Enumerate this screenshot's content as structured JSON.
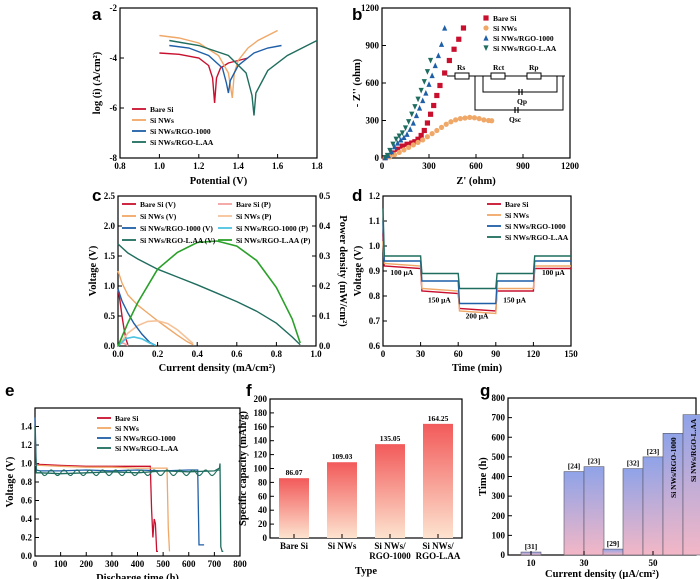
{
  "panels": {
    "a": {
      "letter": "a"
    },
    "b": {
      "letter": "b",
      "circuit": {
        "rs": "Rs",
        "rct": "Rct",
        "rp": "Rp",
        "qp": "Qp",
        "qsc": "Qsc"
      }
    },
    "c": {
      "letter": "c"
    },
    "d": {
      "letter": "d"
    },
    "e": {
      "letter": "e"
    },
    "f": {
      "letter": "f"
    },
    "g": {
      "letter": "g"
    }
  },
  "colors": {
    "bare": "#c8102e",
    "nws": "#f0a868",
    "rgo1000": "#1f5fa8",
    "laa": "#1f6d5e",
    "cap": "#4cc3e0",
    "power": "#2aa02a"
  },
  "chart_data": [
    {
      "type": "line",
      "panel": "a",
      "xlabel": "Potential (V)",
      "ylabel": "log (i) (A/cm²)",
      "xlim": [
        0.8,
        1.8
      ],
      "ylim": [
        -8,
        -2
      ],
      "xticks": [
        "0.8",
        "1.0",
        "1.2",
        "1.4",
        "1.6",
        "1.8"
      ],
      "yticks": [
        "-8",
        "-6",
        "-4",
        "-2"
      ],
      "legend_position": "bottom-left",
      "series": [
        {
          "name": "Bare Si",
          "color": "#c8102e",
          "x": [
            1.0,
            1.1,
            1.2,
            1.25,
            1.27,
            1.28,
            1.29,
            1.31,
            1.35,
            1.4,
            1.45
          ],
          "y": [
            -3.8,
            -3.85,
            -4.0,
            -4.3,
            -4.8,
            -5.8,
            -4.8,
            -4.4,
            -4.2,
            -4.1,
            -4.0
          ]
        },
        {
          "name": "Si NWs",
          "color": "#f0a868",
          "x": [
            1.0,
            1.1,
            1.2,
            1.3,
            1.35,
            1.37,
            1.38,
            1.4,
            1.45,
            1.5,
            1.6
          ],
          "y": [
            -3.1,
            -3.2,
            -3.4,
            -3.9,
            -4.6,
            -5.6,
            -4.6,
            -4.1,
            -3.6,
            -3.3,
            -2.9
          ]
        },
        {
          "name": "Si NWs/RGO-1000",
          "color": "#1f5fa8",
          "x": [
            1.05,
            1.15,
            1.25,
            1.32,
            1.34,
            1.35,
            1.36,
            1.4,
            1.48,
            1.55,
            1.62
          ],
          "y": [
            -3.5,
            -3.6,
            -3.9,
            -4.4,
            -5.0,
            -5.4,
            -4.9,
            -4.3,
            -3.8,
            -3.6,
            -3.5
          ]
        },
        {
          "name": "Si NWs/RGO-L.AA",
          "color": "#1f6d5e",
          "x": [
            1.05,
            1.2,
            1.35,
            1.44,
            1.47,
            1.48,
            1.49,
            1.55,
            1.65,
            1.75,
            1.8
          ],
          "y": [
            -3.3,
            -3.5,
            -3.9,
            -4.6,
            -5.5,
            -6.3,
            -5.4,
            -4.5,
            -3.9,
            -3.5,
            -3.3
          ]
        }
      ]
    },
    {
      "type": "scatter",
      "panel": "b",
      "xlabel": "Z' (ohm)",
      "ylabel": "- Z'' (ohm)",
      "xlim": [
        0,
        1200
      ],
      "ylim": [
        0,
        1200
      ],
      "xticks": [
        "0",
        "300",
        "600",
        "900",
        "1200"
      ],
      "yticks": [
        "0",
        "300",
        "600",
        "900",
        "1200"
      ],
      "legend_position": "top-right",
      "series": [
        {
          "name": "Bare Si",
          "marker": "square",
          "color": "#c8102e",
          "x": [
            20,
            40,
            70,
            100,
            130,
            160,
            190,
            210,
            230,
            250,
            270,
            290,
            310,
            330,
            350,
            370,
            400,
            430,
            460,
            490,
            520
          ],
          "y": [
            3,
            12,
            40,
            70,
            95,
            110,
            120,
            130,
            150,
            180,
            220,
            280,
            350,
            420,
            500,
            580,
            680,
            780,
            870,
            950,
            1040
          ]
        },
        {
          "name": "Si NWs",
          "marker": "circle",
          "color": "#f0a868",
          "x": [
            20,
            50,
            80,
            110,
            140,
            170,
            200,
            230,
            260,
            290,
            320,
            350,
            380,
            410,
            440,
            470,
            500,
            530,
            560,
            590,
            620,
            650,
            680,
            700
          ],
          "y": [
            3,
            10,
            25,
            45,
            65,
            85,
            105,
            125,
            145,
            170,
            195,
            220,
            245,
            270,
            290,
            305,
            315,
            320,
            325,
            322,
            315,
            305,
            300,
            298
          ]
        },
        {
          "name": "Si NWs/RGO-1000",
          "marker": "triangle-up",
          "color": "#1f5fa8",
          "x": [
            20,
            40,
            60,
            80,
            100,
            120,
            140,
            160,
            180,
            200,
            220,
            240,
            260,
            280,
            300,
            320,
            340,
            360,
            380,
            400
          ],
          "y": [
            3,
            20,
            50,
            90,
            120,
            145,
            165,
            190,
            230,
            280,
            340,
            400,
            460,
            520,
            590,
            660,
            740,
            820,
            910,
            1040
          ]
        },
        {
          "name": "Si NWs/RGO-L.AA",
          "marker": "triangle-down",
          "color": "#1f6d5e",
          "x": [
            20,
            35,
            50,
            70,
            90,
            110,
            130,
            150,
            170,
            190,
            210,
            230,
            250,
            270,
            290,
            310
          ],
          "y": [
            3,
            20,
            60,
            110,
            150,
            175,
            200,
            240,
            290,
            350,
            410,
            470,
            540,
            610,
            690,
            780
          ]
        }
      ]
    },
    {
      "type": "line",
      "panel": "c",
      "xlabel": "Current density (mA/cm²)",
      "ylabel": "Voltage (V)",
      "y2label": "Power density (mW/cm²)",
      "xlim": [
        0,
        1.0
      ],
      "ylim": [
        0,
        2.5
      ],
      "y2lim": [
        0,
        0.5
      ],
      "xticks": [
        "0.0",
        "0.2",
        "0.4",
        "0.6",
        "0.8",
        "1.0"
      ],
      "yticks": [
        "0.0",
        "0.5",
        "1.0",
        "1.5",
        "2.0",
        "2.5"
      ],
      "y2ticks": [
        "0.0",
        "0.1",
        "0.2",
        "0.3",
        "0.4",
        "0.5"
      ],
      "legend_position": "top",
      "series": [
        {
          "name": "Bare Si (V)",
          "axis": "left",
          "color": "#c8102e",
          "x": [
            0,
            0.01,
            0.02,
            0.03,
            0.04,
            0.05
          ],
          "y": [
            0.95,
            0.75,
            0.5,
            0.3,
            0.12,
            0.02
          ]
        },
        {
          "name": "Bare Si (P)",
          "axis": "right",
          "color": "#f4a0a0",
          "x": [
            0,
            0.01,
            0.02,
            0.03,
            0.04,
            0.05
          ],
          "y": [
            0,
            0.008,
            0.01,
            0.009,
            0.005,
            0.001
          ]
        },
        {
          "name": "Si NWs (V)",
          "axis": "left",
          "color": "#f0a868",
          "x": [
            0,
            0.02,
            0.05,
            0.1,
            0.15,
            0.2,
            0.25,
            0.3,
            0.35,
            0.38
          ],
          "y": [
            1.25,
            1.05,
            0.85,
            0.68,
            0.55,
            0.42,
            0.3,
            0.18,
            0.07,
            0.02
          ]
        },
        {
          "name": "Si NWs (P)",
          "axis": "right",
          "color": "#f5c39a",
          "x": [
            0,
            0.05,
            0.1,
            0.15,
            0.2,
            0.25,
            0.3,
            0.35,
            0.38
          ],
          "y": [
            0,
            0.043,
            0.068,
            0.082,
            0.084,
            0.075,
            0.054,
            0.025,
            0.008
          ]
        },
        {
          "name": "Si NWs/RGO-1000 (V)",
          "axis": "left",
          "color": "#1f5fa8",
          "x": [
            0,
            0.02,
            0.05,
            0.08,
            0.12,
            0.16,
            0.19
          ],
          "y": [
            0.95,
            0.75,
            0.55,
            0.38,
            0.2,
            0.06,
            0.01
          ]
        },
        {
          "name": "Si NWs/RGO-1000 (P)",
          "axis": "right",
          "color": "#4cc3e0",
          "x": [
            0,
            0.04,
            0.08,
            0.12,
            0.16,
            0.19
          ],
          "y": [
            0,
            0.025,
            0.03,
            0.024,
            0.01,
            0.002
          ]
        },
        {
          "name": "Si NWs/RGO-L.AA (V)",
          "axis": "left",
          "color": "#1f6d5e",
          "x": [
            0,
            0.05,
            0.1,
            0.2,
            0.3,
            0.4,
            0.5,
            0.6,
            0.7,
            0.8,
            0.88,
            0.92
          ],
          "y": [
            1.7,
            1.55,
            1.45,
            1.28,
            1.15,
            1.02,
            0.88,
            0.74,
            0.58,
            0.38,
            0.15,
            0.02
          ]
        },
        {
          "name": "Si NWs/RGO-L.AA (P)",
          "axis": "right",
          "color": "#2aa02a",
          "x": [
            0,
            0.05,
            0.1,
            0.2,
            0.3,
            0.4,
            0.5,
            0.6,
            0.7,
            0.8,
            0.88,
            0.92
          ],
          "y": [
            0,
            0.077,
            0.145,
            0.256,
            0.312,
            0.345,
            0.35,
            0.333,
            0.285,
            0.195,
            0.09,
            0.01
          ]
        }
      ]
    },
    {
      "type": "line",
      "panel": "d",
      "xlabel": "Time (min)",
      "ylabel": "Voltage (V)",
      "xlim": [
        0,
        150
      ],
      "ylim": [
        0.6,
        1.2
      ],
      "xticks": [
        "0",
        "30",
        "60",
        "90",
        "120",
        "150"
      ],
      "yticks": [
        "0.6",
        "0.7",
        "0.8",
        "0.9",
        "1.0",
        "1.1",
        "1.2"
      ],
      "legend_position": "top-right",
      "annotations": [
        "100 μA",
        "150 μA",
        "200 μA",
        "150 μA",
        "100 μA"
      ],
      "series": [
        {
          "name": "Bare Si",
          "color": "#c8102e",
          "x": [
            0,
            1,
            30,
            31,
            60,
            61,
            90,
            91,
            120,
            121,
            150
          ],
          "y": [
            1.05,
            0.92,
            0.91,
            0.82,
            0.81,
            0.75,
            0.74,
            0.82,
            0.82,
            0.91,
            0.91
          ]
        },
        {
          "name": "Si NWs",
          "color": "#f0a868",
          "x": [
            0,
            1,
            30,
            31,
            60,
            61,
            90,
            91,
            120,
            121,
            150
          ],
          "y": [
            1.02,
            0.93,
            0.92,
            0.83,
            0.82,
            0.74,
            0.73,
            0.83,
            0.83,
            0.92,
            0.92
          ]
        },
        {
          "name": "Si NWs/RGO-1000",
          "color": "#1f5fa8",
          "x": [
            0,
            1,
            30,
            31,
            60,
            61,
            90,
            91,
            120,
            121,
            150
          ],
          "y": [
            1.1,
            0.94,
            0.94,
            0.86,
            0.86,
            0.77,
            0.77,
            0.86,
            0.86,
            0.94,
            0.94
          ]
        },
        {
          "name": "Si NWs/RGO-L.AA",
          "color": "#1f6d5e",
          "x": [
            0,
            1,
            30,
            31,
            60,
            61,
            90,
            91,
            120,
            121,
            150
          ],
          "y": [
            1.15,
            0.96,
            0.96,
            0.89,
            0.89,
            0.83,
            0.83,
            0.89,
            0.89,
            0.96,
            0.96
          ]
        }
      ]
    },
    {
      "type": "line",
      "panel": "e",
      "xlabel": "Discharge time (h)",
      "ylabel": "Voltage (V)",
      "xlim": [
        0,
        800
      ],
      "ylim": [
        0.0,
        1.6
      ],
      "xticks": [
        "0",
        "100",
        "200",
        "300",
        "400",
        "500",
        "600",
        "700",
        "800"
      ],
      "yticks": [
        "0.0",
        "0.2",
        "0.4",
        "0.6",
        "0.8",
        "1.0",
        "1.2",
        "1.4"
      ],
      "legend_position": "top-center",
      "series": [
        {
          "name": "Bare Si",
          "color": "#c8102e",
          "x": [
            0,
            20,
            100,
            200,
            300,
            400,
            450,
            455,
            460,
            465,
            470,
            475,
            480
          ],
          "y": [
            1.0,
            0.99,
            0.98,
            0.97,
            0.97,
            0.97,
            0.97,
            0.5,
            0.2,
            0.4,
            0.35,
            0.05,
            0.05
          ]
        },
        {
          "name": "Si NWs",
          "color": "#f0a868",
          "x": [
            0,
            20,
            100,
            200,
            300,
            400,
            480,
            515,
            520,
            525
          ],
          "y": [
            0.98,
            0.98,
            0.97,
            0.96,
            0.96,
            0.95,
            0.95,
            0.95,
            0.3,
            0.05
          ]
        },
        {
          "name": "Si NWs/RGO-1000",
          "color": "#1f5fa8",
          "x": [
            0,
            5,
            20,
            100,
            200,
            300,
            400,
            500,
            600,
            635,
            640,
            645,
            660
          ],
          "y": [
            1.5,
            0.93,
            0.92,
            0.92,
            0.93,
            0.92,
            0.93,
            0.92,
            0.93,
            0.93,
            0.12,
            0.12,
            0.12
          ]
        },
        {
          "name": "Si NWs/RGO-L.AA",
          "color": "#1f6d5e",
          "x": [
            0,
            5,
            20,
            100,
            200,
            300,
            400,
            500,
            600,
            700,
            720,
            722,
            725,
            730,
            735
          ],
          "y": [
            1.4,
            0.9,
            0.9,
            0.89,
            0.9,
            0.91,
            0.9,
            0.92,
            0.91,
            0.92,
            0.95,
            1.0,
            0.1,
            0.05,
            0.05
          ]
        }
      ]
    },
    {
      "type": "bar",
      "panel": "f",
      "xlabel": "Type",
      "ylabel": "Specific capacity (mAh/g)",
      "categories": [
        "Bare Si",
        "Si NWs",
        "Si NWs/\nRGO-1000",
        "Si NWs/\nRGO-L.AA"
      ],
      "values": [
        86.07,
        109.03,
        135.05,
        164.25
      ],
      "value_labels": [
        "86.07",
        "109.03",
        "135.05",
        "164.25"
      ],
      "ylim": [
        0,
        200
      ],
      "yticks": [
        "0",
        "20",
        "40",
        "60",
        "80",
        "100",
        "120",
        "140",
        "160",
        "180",
        "200"
      ]
    },
    {
      "type": "bar",
      "panel": "g",
      "xlabel": "Current density (μA/cm²)",
      "ylabel": "Time (h)",
      "ylim": [
        0,
        800
      ],
      "yticks": [
        "0",
        "100",
        "200",
        "300",
        "400",
        "500",
        "600",
        "700",
        "800"
      ],
      "xtick_labels": [
        "10",
        "30",
        "50"
      ],
      "bars": [
        {
          "group": "10",
          "label": "[31]",
          "value": 15
        },
        {
          "group": "30",
          "label": "[24]",
          "value": 425
        },
        {
          "group": "30",
          "label": "[23]",
          "value": 450
        },
        {
          "group": "50",
          "label": "[29]",
          "value": 30
        },
        {
          "group": "50",
          "label": "[32]",
          "value": 440
        },
        {
          "group": "50",
          "label": "[23]",
          "value": 500
        },
        {
          "group": "50",
          "label": "Si NWs/RGO-1000",
          "value": 620
        },
        {
          "group": "50",
          "label": "Si NWs/RGO-L.AA",
          "value": 715
        }
      ]
    }
  ]
}
